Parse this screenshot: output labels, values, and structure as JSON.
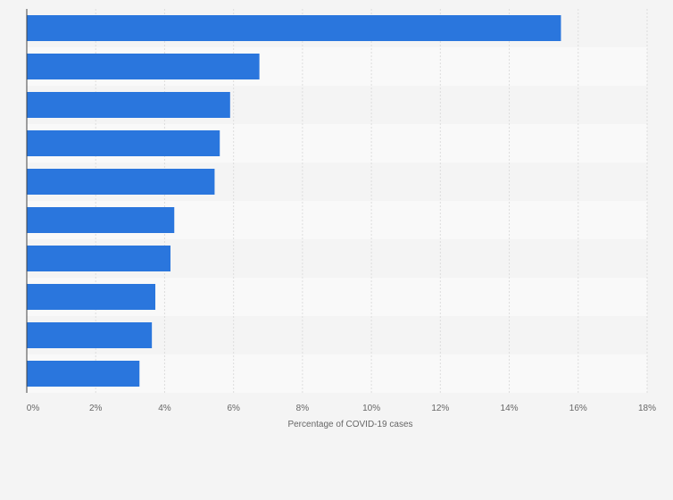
{
  "chart_data": {
    "type": "bar",
    "orientation": "horizontal",
    "categories": [
      "",
      "",
      "",
      "",
      "",
      "",
      "",
      "",
      "",
      ""
    ],
    "values": [
      15.5,
      6.75,
      5.9,
      5.6,
      5.45,
      4.28,
      4.17,
      3.73,
      3.63,
      3.27
    ],
    "xlabel": "Percentage of COVID-19 cases",
    "xlim": [
      0,
      18
    ],
    "xticks": [
      0,
      2,
      4,
      6,
      8,
      10,
      12,
      14,
      16,
      18
    ],
    "xtick_labels": [
      "0%",
      "2%",
      "4%",
      "6%",
      "8%",
      "10%",
      "12%",
      "14%",
      "16%",
      "18%"
    ],
    "grid": true,
    "bar_color": "#2a76dd",
    "background": "#f4f4f4",
    "band_color": "#f9f9f9",
    "grid_color": "#dddddd",
    "axis_color": "#444444"
  }
}
